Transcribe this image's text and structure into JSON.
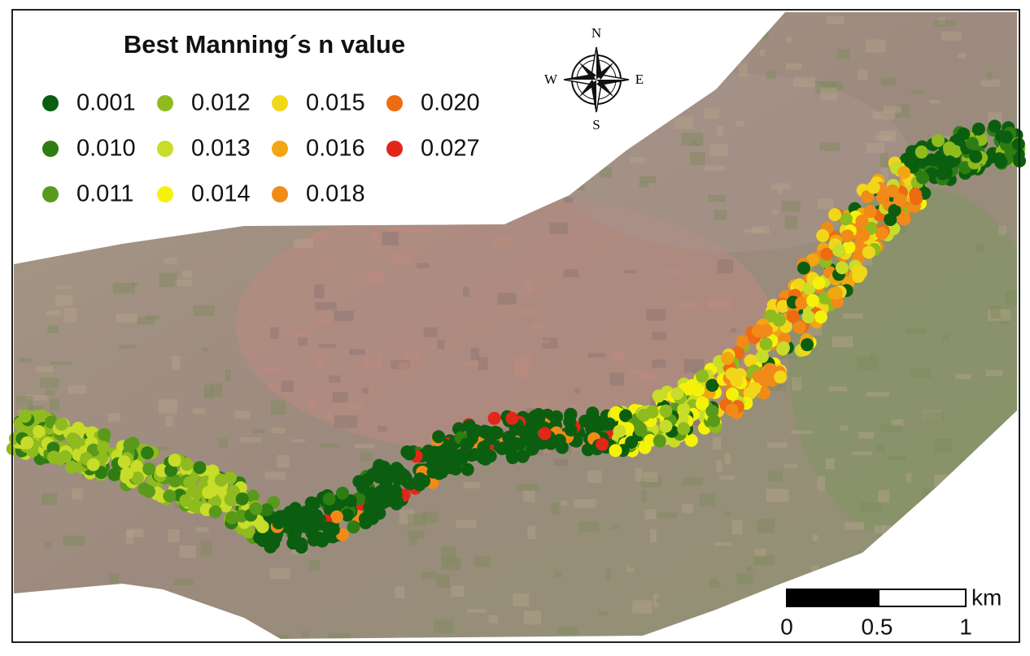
{
  "title": "Best Manning´s n value",
  "legend": {
    "items": [
      {
        "label": "0.001",
        "color": "#0b5e10"
      },
      {
        "label": "0.010",
        "color": "#2e7d12"
      },
      {
        "label": "0.011",
        "color": "#5a9a1a"
      },
      {
        "label": "0.012",
        "color": "#8fbb1e"
      },
      {
        "label": "0.013",
        "color": "#c8dc2a"
      },
      {
        "label": "0.014",
        "color": "#f5f20a"
      },
      {
        "label": "0.015",
        "color": "#f1d61a"
      },
      {
        "label": "0.016",
        "color": "#f2a611"
      },
      {
        "label": "0.018",
        "color": "#f28a18"
      },
      {
        "label": "0.020",
        "color": "#ee6b12"
      },
      {
        "label": "0.027",
        "color": "#e2261a"
      }
    ]
  },
  "compass": {
    "north": "N",
    "south": "S",
    "east": "E",
    "west": "W"
  },
  "scale_bar": {
    "unit": "km",
    "labels": [
      "0",
      "0.5",
      "1"
    ]
  }
}
